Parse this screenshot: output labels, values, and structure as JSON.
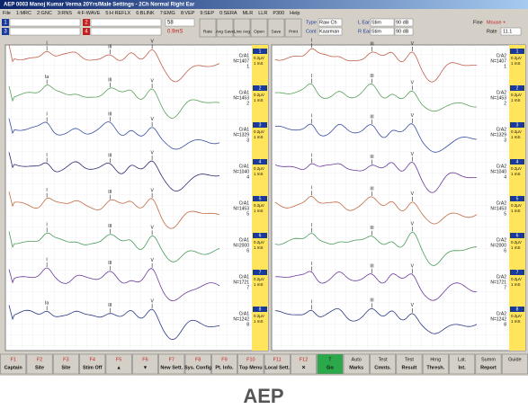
{
  "title_bar": "AEP 0003   Manoj Kumar Verma   20Yrs/Male   Settings - 2Ch Normal Right Ear",
  "menu": [
    "File",
    "1:MRC",
    "2:GNC",
    "3:RNS",
    "4:F-WAVE",
    "5:H REFLX",
    "6:BLINK",
    "7:EMG",
    "8:VEP",
    "9:SEP",
    "0:SERA",
    "MLR",
    "LLR",
    "P300",
    "Help"
  ],
  "toolbar": {
    "channels": [
      "1",
      "3",
      "2",
      "4"
    ],
    "sweep": "58",
    "marker": "0.9mS",
    "buttons": [
      "Rate",
      "Avg Save",
      "Live Avg",
      "Open",
      "Save",
      "Print"
    ],
    "fields": [
      {
        "label": "Type",
        "value": "Raw Ch"
      },
      {
        "label": "Cont",
        "value": "Kaarman"
      },
      {
        "label": "L Ear",
        "value": "Stim",
        "level": "90 dB"
      },
      {
        "label": "R Ear",
        "value": "Stim",
        "level": "90 dB"
      }
    ],
    "fine": "Fine",
    "mode": "Mouse +",
    "rate_label": "Rate",
    "rate": "11.1"
  },
  "panels": [
    {
      "trace_colors": [
        "#c0604a",
        "#5aa05a",
        "#3a4fa0",
        "#2a2a70",
        "#c06a40",
        "#4a9a5a",
        "#6a3a9a",
        "#2a3a80"
      ],
      "traces": [
        {
          "site": "CrA1",
          "n": "N=1407",
          "index": "1",
          "peaks": [
            "I",
            "III",
            "V"
          ]
        },
        {
          "site": "CrA1",
          "n": "N=1453",
          "index": "2",
          "peaks": [
            "Ia",
            "III",
            "V"
          ]
        },
        {
          "site": "CrA1",
          "n": "N=1329",
          "index": "3",
          "peaks": [
            "I",
            "III",
            "V"
          ]
        },
        {
          "site": "CrA1",
          "n": "N=1040",
          "index": "4",
          "peaks": [
            "I",
            "III",
            "V"
          ]
        },
        {
          "site": "CrA1",
          "n": "N=1453",
          "index": "5",
          "peaks": [
            "I",
            "III",
            "V"
          ]
        },
        {
          "site": "CrA1",
          "n": "N=2000",
          "index": "6",
          "peaks": [
            "I",
            "III",
            "V"
          ]
        },
        {
          "site": "CrA1",
          "n": "N=1721",
          "index": "7",
          "peaks": [
            "I",
            "III",
            "V"
          ]
        },
        {
          "site": "CrA1",
          "n": "N=1242",
          "index": "8",
          "peaks": [
            "Ia",
            "III",
            "V"
          ]
        }
      ],
      "sidebar": [
        "1",
        "2",
        "3",
        "4",
        "5",
        "6",
        "7",
        "8"
      ],
      "scale": "0.2µV",
      "time": "1 mS"
    },
    {
      "trace_colors": [
        "#c0604a",
        "#5aa05a",
        "#3a4fa0",
        "#6a3a9a",
        "#c06a40",
        "#4a9a5a",
        "#6a3a9a",
        "#2a3a80"
      ],
      "traces": [
        {
          "site": "CrA2",
          "n": "N=1407",
          "index": "1",
          "peaks": [
            "I",
            "III",
            "V"
          ]
        },
        {
          "site": "CrA2",
          "n": "N=1453",
          "index": "2",
          "peaks": [
            "I",
            "III",
            "V"
          ]
        },
        {
          "site": "CrA2",
          "n": "N=1329",
          "index": "3",
          "peaks": [
            "I",
            "III",
            "V"
          ]
        },
        {
          "site": "CrA2",
          "n": "N=1040",
          "index": "4",
          "peaks": [
            "I",
            "III",
            "V"
          ]
        },
        {
          "site": "CrA2",
          "n": "N=1453",
          "index": "5",
          "peaks": [
            "I",
            "III",
            "V"
          ]
        },
        {
          "site": "CrA2",
          "n": "N=2000",
          "index": "6",
          "peaks": [
            "I",
            "III",
            "V"
          ]
        },
        {
          "site": "CrA2",
          "n": "N=1721",
          "index": "7",
          "peaks": [
            "I",
            "III",
            "V"
          ]
        },
        {
          "site": "CrA2",
          "n": "N=1242",
          "index": "8",
          "peaks": [
            "I",
            "III",
            "V"
          ]
        }
      ],
      "sidebar": [
        "1",
        "2",
        "3",
        "4",
        "5",
        "6",
        "7",
        "8"
      ],
      "scale": "0.2µV",
      "time": "1 mS"
    }
  ],
  "function_keys": [
    {
      "key": "F1",
      "label": "Captain"
    },
    {
      "key": "F2",
      "label": "Site"
    },
    {
      "key": "F3",
      "label": "Site"
    },
    {
      "key": "F4",
      "label": "Stim Off"
    },
    {
      "key": "F5",
      "label": "▲"
    },
    {
      "key": "F6",
      "label": "▼"
    },
    {
      "key": "F7",
      "label": "New Sett."
    },
    {
      "key": "F8",
      "label": "Sys. Config"
    },
    {
      "key": "F9",
      "label": "Pt. Info."
    },
    {
      "key": "F10",
      "label": "Top Menu"
    },
    {
      "key": "F11",
      "label": "Local Sett."
    },
    {
      "key": "F12",
      "label": "✕"
    },
    {
      "key": "T",
      "label": "Go"
    },
    {
      "key": "Auto",
      "label": "Marks"
    },
    {
      "key": "Test",
      "label": "Cmnts."
    },
    {
      "key": "Test",
      "label": "Result"
    },
    {
      "key": "Hrng",
      "label": "Thresh."
    },
    {
      "key": "Lat.",
      "label": "Int."
    },
    {
      "key": "Summ",
      "label": "Report"
    },
    {
      "key": "Guide",
      "label": ""
    }
  ],
  "caption": "AEP"
}
